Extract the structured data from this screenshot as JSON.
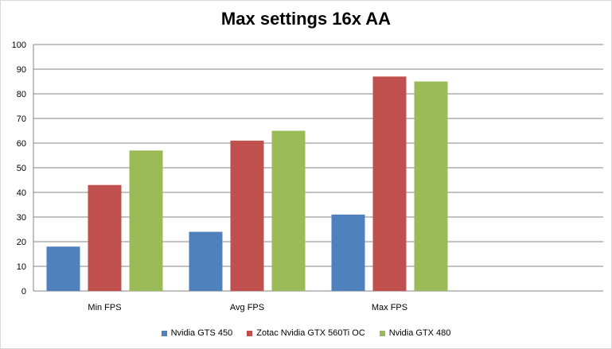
{
  "chart_data": {
    "type": "bar",
    "title": "Max settings 16x AA",
    "categories": [
      "Min FPS",
      "Avg FPS",
      "Max FPS"
    ],
    "series": [
      {
        "name": "Nvidia GTS 450",
        "values": [
          18,
          24,
          31
        ],
        "color": "#4f81bd"
      },
      {
        "name": "Zotac Nvidia GTX 560Ti OC",
        "values": [
          43,
          61,
          87
        ],
        "color": "#c0504d"
      },
      {
        "name": "Nvidia GTX 480",
        "values": [
          57,
          65,
          85
        ],
        "color": "#9bbb59"
      }
    ],
    "ylim": [
      0,
      100
    ],
    "yticks": [
      0,
      10,
      20,
      30,
      40,
      50,
      60,
      70,
      80,
      90,
      100
    ],
    "grid": true,
    "legend_position": "bottom"
  }
}
